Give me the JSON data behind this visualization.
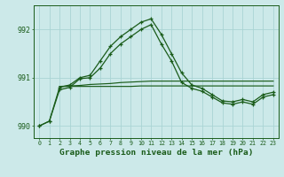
{
  "title": "Graphe pression niveau de la mer (hPa)",
  "background_color": "#cce9e9",
  "grid_color": "#aad4d4",
  "line_color": "#1a5c1a",
  "x_values": [
    0,
    1,
    2,
    3,
    4,
    5,
    6,
    7,
    8,
    9,
    10,
    11,
    12,
    13,
    14,
    15,
    16,
    17,
    18,
    19,
    20,
    21,
    22,
    23
  ],
  "curve1_y": [
    990.0,
    990.1,
    990.8,
    990.85,
    991.0,
    991.05,
    991.35,
    991.65,
    991.85,
    992.0,
    992.15,
    992.22,
    991.9,
    991.5,
    991.1,
    990.85,
    990.78,
    990.65,
    990.52,
    990.5,
    990.55,
    990.5,
    990.65,
    990.7
  ],
  "curve2_y": [
    990.0,
    990.1,
    990.75,
    990.8,
    990.98,
    991.0,
    991.2,
    991.5,
    991.7,
    991.85,
    992.0,
    992.1,
    991.7,
    991.35,
    990.9,
    990.78,
    990.72,
    990.6,
    990.48,
    990.45,
    990.5,
    990.45,
    990.6,
    990.65
  ],
  "flat1_x": [
    2,
    3,
    4,
    5,
    6,
    7,
    8,
    9,
    10,
    11,
    12,
    13,
    14,
    15,
    16,
    17,
    18,
    19,
    20,
    21,
    22,
    23
  ],
  "flat1_y": [
    990.82,
    990.82,
    990.82,
    990.82,
    990.82,
    990.82,
    990.82,
    990.82,
    990.83,
    990.83,
    990.83,
    990.83,
    990.83,
    990.83,
    990.83,
    990.83,
    990.83,
    990.83,
    990.83,
    990.83,
    990.83,
    990.83
  ],
  "flat2_x": [
    2,
    3,
    4,
    5,
    6,
    7,
    8,
    9,
    10,
    11,
    12,
    13,
    14,
    15,
    16,
    17,
    18,
    19,
    20,
    21,
    22,
    23
  ],
  "flat2_y": [
    990.82,
    990.83,
    990.84,
    990.86,
    990.87,
    990.88,
    990.9,
    990.91,
    990.92,
    990.93,
    990.93,
    990.93,
    990.93,
    990.93,
    990.93,
    990.93,
    990.93,
    990.93,
    990.93,
    990.93,
    990.93,
    990.93
  ],
  "ylim": [
    989.75,
    992.5
  ],
  "yticks": [
    990,
    991,
    992
  ],
  "xticks": [
    0,
    1,
    2,
    3,
    4,
    5,
    6,
    7,
    8,
    9,
    10,
    11,
    12,
    13,
    14,
    15,
    16,
    17,
    18,
    19,
    20,
    21,
    22,
    23
  ]
}
